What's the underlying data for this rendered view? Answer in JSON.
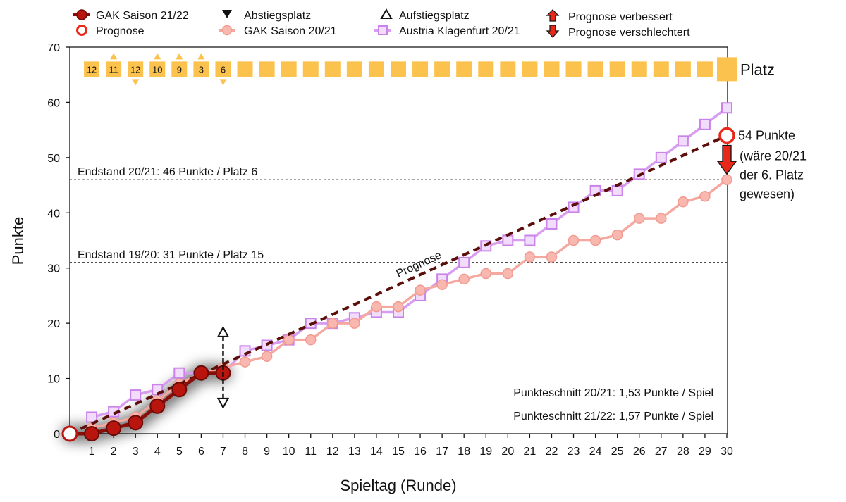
{
  "chart_data": {
    "type": "line",
    "xlabel": "Spieltag (Runde)",
    "ylabel": "Punkte",
    "xlim": [
      0,
      30
    ],
    "ylim": [
      0,
      70
    ],
    "x_ticks": [
      1,
      2,
      3,
      4,
      5,
      6,
      7,
      8,
      9,
      10,
      11,
      12,
      13,
      14,
      15,
      16,
      17,
      18,
      19,
      20,
      21,
      22,
      23,
      24,
      25,
      26,
      27,
      28,
      29,
      30
    ],
    "y_ticks": [
      0,
      10,
      20,
      30,
      40,
      50,
      60,
      70
    ],
    "legend": [
      {
        "label": "GAK Saison 21/22",
        "marker": "filled-circle"
      },
      {
        "label": "Prognose",
        "marker": "open-circle"
      },
      {
        "label": "Abstiegsplatz",
        "marker": "triangle-down"
      },
      {
        "label": "GAK Saison 20/21",
        "marker": "light-circle"
      },
      {
        "label": "Aufstiegsplatz",
        "marker": "triangle-up"
      },
      {
        "label": "Austria Klagenfurt 20/21",
        "marker": "square"
      },
      {
        "label": "Prognose verbessert",
        "marker": "red-arrow-up"
      },
      {
        "label": "Prognose verschlechtert",
        "marker": "red-arrow-down"
      }
    ],
    "series": [
      {
        "name": "GAK Saison 21/22",
        "color": "#b8150f",
        "x": [
          0,
          1,
          2,
          3,
          4,
          5,
          6,
          7
        ],
        "y": [
          0,
          0,
          1,
          2,
          5,
          8,
          11,
          11
        ]
      },
      {
        "name": "GAK Saison 20/21",
        "color": "#f5a8a0",
        "x": [
          1,
          2,
          3,
          4,
          5,
          6,
          7,
          8,
          9,
          10,
          11,
          12,
          13,
          14,
          15,
          16,
          17,
          18,
          19,
          20,
          21,
          22,
          23,
          24,
          25,
          26,
          27,
          28,
          29,
          30
        ],
        "y": [
          1,
          2,
          3,
          6,
          9,
          11,
          12,
          13,
          14,
          17,
          17,
          20,
          20,
          23,
          23,
          26,
          27,
          28,
          29,
          29,
          32,
          32,
          35,
          35,
          36,
          39,
          39,
          42,
          43,
          46
        ]
      },
      {
        "name": "Austria Klagenfurt 20/21",
        "color": "#d89df0",
        "x": [
          1,
          2,
          3,
          4,
          5,
          6,
          7,
          8,
          9,
          10,
          11,
          12,
          13,
          14,
          15,
          16,
          17,
          18,
          19,
          20,
          21,
          22,
          23,
          24,
          25,
          26,
          27,
          28,
          29,
          30
        ],
        "y": [
          3,
          4,
          7,
          8,
          11,
          11,
          11,
          15,
          16,
          17,
          20,
          20,
          21,
          22,
          22,
          25,
          28,
          31,
          34,
          35,
          35,
          38,
          41,
          44,
          44,
          47,
          50,
          53,
          56,
          59
        ]
      }
    ],
    "prognose_line": {
      "color": "#5c0e0a",
      "label": "Prognose",
      "from": [
        0,
        0
      ],
      "to": [
        30,
        54
      ]
    },
    "prognose_point": {
      "x": 30,
      "y": 54,
      "label": "54 Punkte",
      "note": [
        "(wäre 20/21",
        "der 6. Platz",
        "gewesen)"
      ]
    },
    "prognose_arrow": {
      "x": 30,
      "from_y": 54,
      "to_y": 46,
      "color": "#e8291a"
    },
    "reference_lines": [
      {
        "y": 46,
        "label": "Endstand 20/21: 46 Punkte / Platz 6"
      },
      {
        "y": 31,
        "label": "Endstand 19/20: 31 Punkte / Platz 15"
      }
    ],
    "place_row": {
      "label": "Platz",
      "y": 66,
      "color": "#fcc24e",
      "places": [
        "12",
        "11",
        "12",
        "10",
        "9",
        "3",
        "6"
      ],
      "changes": [
        "none",
        "up",
        "down",
        "up",
        "up",
        "up",
        "down"
      ],
      "total_rounds": 30
    },
    "round7_marker": {
      "x": 7,
      "y": 11,
      "up_y": 18.5,
      "down_y": 5.5
    },
    "annotations": [
      "Punkteschnitt 20/21: 1,53 Punkte / Spiel",
      "Punkteschnitt 21/22: 1,57 Punkte / Spiel"
    ]
  }
}
